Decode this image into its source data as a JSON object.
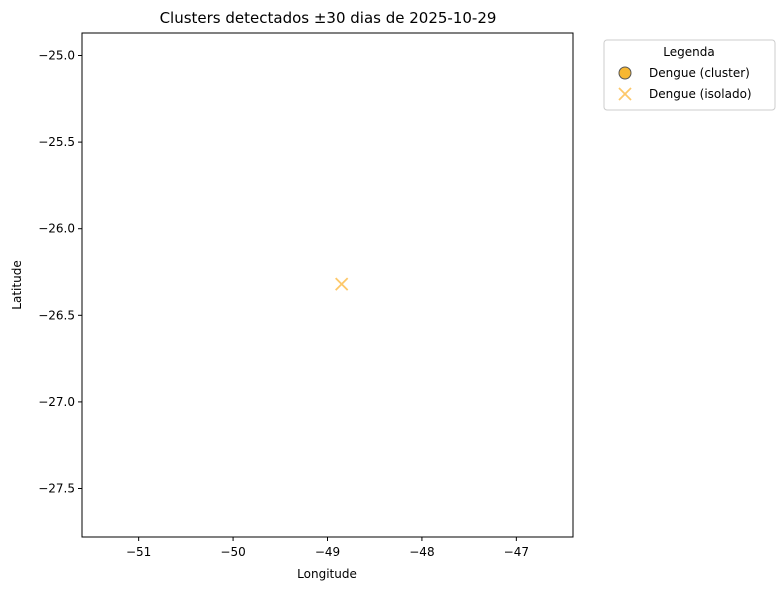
{
  "chart_data": {
    "type": "scatter",
    "title": "Clusters detectados ±30 dias de 2025-10-29",
    "xlabel": "Longitude",
    "ylabel": "Latitude",
    "xlim": [
      -51.6,
      -46.4
    ],
    "ylim": [
      -27.78,
      -24.87
    ],
    "xticks": [
      -51,
      -50,
      -49,
      -48,
      -47
    ],
    "yticks": [
      -25.0,
      -25.5,
      -26.0,
      -26.5,
      -27.0,
      -27.5
    ],
    "xtick_labels": [
      "−51",
      "−50",
      "−49",
      "−48",
      "−47"
    ],
    "ytick_labels": [
      "−25.0",
      "−25.5",
      "−26.0",
      "−26.5",
      "−27.0",
      "−27.5"
    ],
    "grid": false,
    "legend": {
      "title": "Legenda",
      "placement": "outside-upper-right",
      "entries": [
        {
          "label": "Dengue (cluster)",
          "marker": "circle",
          "color": "#f7b731",
          "edge": "#555555"
        },
        {
          "label": "Dengue (isolado)",
          "marker": "x",
          "color": "#fdc86a"
        }
      ]
    },
    "series": [
      {
        "name": "Dengue (cluster)",
        "marker": "circle",
        "color": "#f7b731",
        "points": []
      },
      {
        "name": "Dengue (isolado)",
        "marker": "x",
        "color": "#fdc86a",
        "points": [
          {
            "x": -48.85,
            "y": -26.32
          }
        ]
      }
    ]
  }
}
